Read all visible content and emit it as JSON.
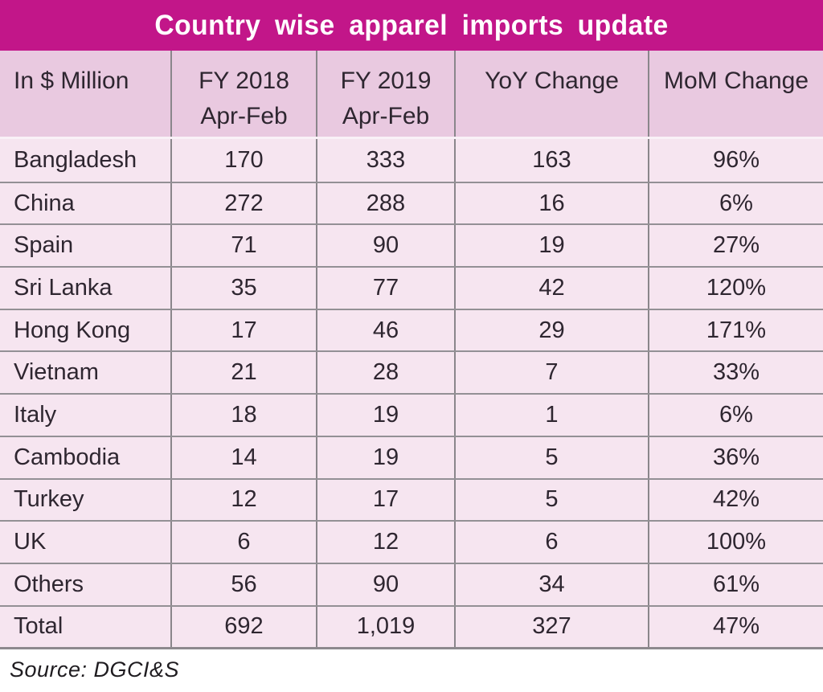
{
  "title": "Country wise apparel imports update",
  "source": "Source: DGCI&S",
  "colors": {
    "title_bar": "#c21689",
    "title_text": "#ffffff",
    "header_row": "#e9c9e0",
    "body_row": "#f6e5f0",
    "grid_line": "#8a868b",
    "text": "#2e2630"
  },
  "table": {
    "headers": [
      {
        "line1": "In $ Million",
        "line2": ""
      },
      {
        "line1": "FY 2018",
        "line2": "Apr-Feb"
      },
      {
        "line1": "FY 2019",
        "line2": "Apr-Feb"
      },
      {
        "line1": "YoY Change",
        "line2": ""
      },
      {
        "line1": "MoM Change",
        "line2": ""
      }
    ],
    "rows": [
      [
        "Bangladesh",
        "170",
        "333",
        "163",
        "96%"
      ],
      [
        "China",
        "272",
        "288",
        "16",
        "6%"
      ],
      [
        "Spain",
        "71",
        "90",
        "19",
        "27%"
      ],
      [
        "Sri Lanka",
        "35",
        "77",
        "42",
        "120%"
      ],
      [
        "Hong Kong",
        "17",
        "46",
        "29",
        "171%"
      ],
      [
        "Vietnam",
        "21",
        "28",
        "7",
        "33%"
      ],
      [
        "Italy",
        "18",
        "19",
        "1",
        "6%"
      ],
      [
        "Cambodia",
        "14",
        "19",
        "5",
        "36%"
      ],
      [
        "Turkey",
        "12",
        "17",
        "5",
        "42%"
      ],
      [
        "UK",
        "6",
        "12",
        "6",
        "100%"
      ],
      [
        "Others",
        "56",
        "90",
        "34",
        "61%"
      ],
      [
        "Total",
        "692",
        "1,019",
        "327",
        "47%"
      ]
    ]
  },
  "chart_data": {
    "type": "table",
    "title": "Country wise apparel imports update",
    "unit_label": "In $ Million",
    "columns": [
      "In $ Million",
      "FY 2018 Apr-Feb",
      "FY 2019 Apr-Feb",
      "YoY Change",
      "MoM Change"
    ],
    "categories": [
      "Bangladesh",
      "China",
      "Spain",
      "Sri Lanka",
      "Hong Kong",
      "Vietnam",
      "Italy",
      "Cambodia",
      "Turkey",
      "UK",
      "Others",
      "Total"
    ],
    "series": [
      {
        "name": "FY 2018 Apr-Feb",
        "values": [
          170,
          272,
          71,
          35,
          17,
          21,
          18,
          14,
          12,
          6,
          56,
          692
        ]
      },
      {
        "name": "FY 2019 Apr-Feb",
        "values": [
          333,
          288,
          90,
          77,
          46,
          28,
          19,
          19,
          17,
          12,
          90,
          1019
        ]
      },
      {
        "name": "YoY Change",
        "values": [
          163,
          16,
          19,
          42,
          29,
          7,
          1,
          5,
          5,
          6,
          34,
          327
        ]
      },
      {
        "name": "MoM Change (%)",
        "values": [
          96,
          6,
          27,
          120,
          171,
          33,
          6,
          36,
          42,
          100,
          61,
          47
        ]
      }
    ],
    "source": "Source: DGCI&S"
  }
}
